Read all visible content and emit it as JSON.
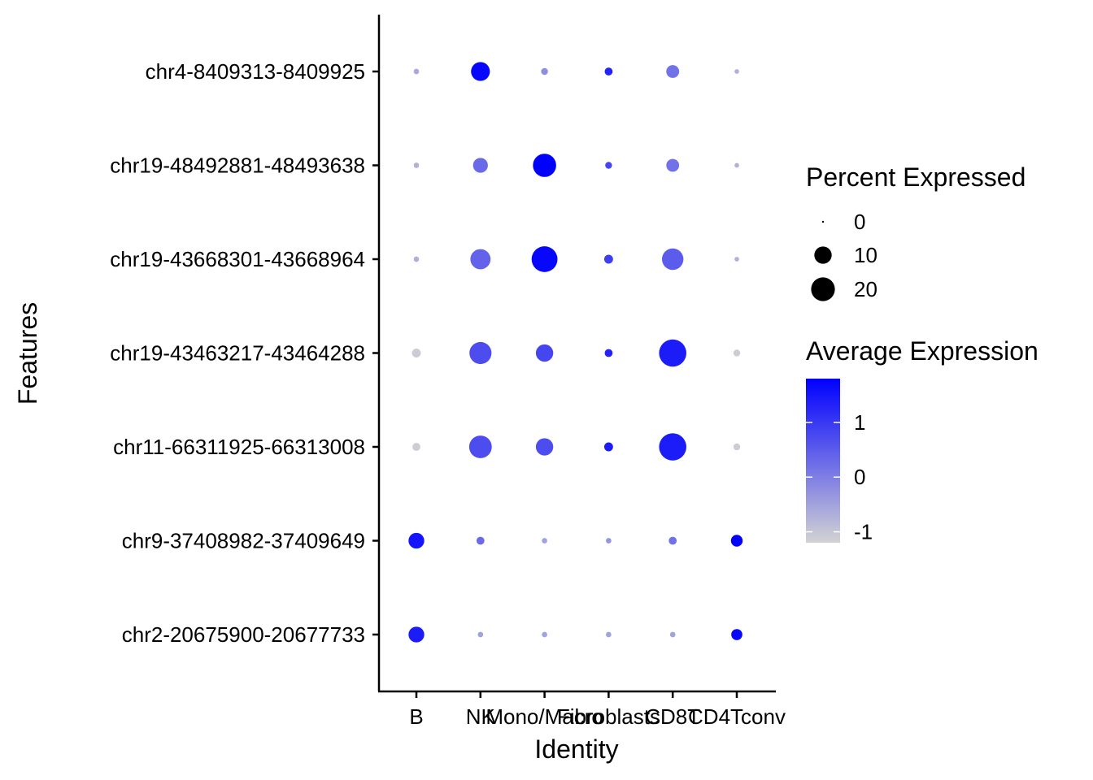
{
  "chart_data": {
    "type": "scatter",
    "subtype": "dot-plot",
    "xlabel": "Identity",
    "ylabel": "Features",
    "x_categories": [
      "B",
      "NK",
      "Mono/Macro",
      "Fibroblasts",
      "CD8T",
      "CD4Tconv"
    ],
    "y_categories": [
      "chr4-8409313-8409925",
      "chr19-48492881-48493638",
      "chr19-43668301-43668964",
      "chr19-43463217-43464288",
      "chr11-66311925-66313008",
      "chr9-37408982-37409649",
      "chr2-20675900-20677733"
    ],
    "pct_expressed": [
      [
        0.5,
        12,
        1,
        1.5,
        5,
        0.3
      ],
      [
        0.5,
        7,
        19,
        1,
        5,
        0.3
      ],
      [
        0.5,
        14,
        24,
        2,
        16,
        0.3
      ],
      [
        2,
        17,
        10,
        1.5,
        27,
        1
      ],
      [
        1.5,
        18,
        10,
        2,
        27,
        1
      ],
      [
        8,
        1.5,
        0.5,
        0.5,
        1.5,
        4
      ],
      [
        8,
        0.5,
        0.5,
        0.5,
        0.5,
        3.5
      ]
    ],
    "avg_expression": [
      [
        -0.6,
        1.7,
        -0.2,
        1.3,
        0.2,
        -0.7
      ],
      [
        -0.7,
        0.3,
        1.8,
        0.8,
        0.2,
        -0.7
      ],
      [
        -0.7,
        0.4,
        1.7,
        0.9,
        0.5,
        -0.7
      ],
      [
        -1.1,
        0.7,
        0.8,
        1.3,
        1.4,
        -1.1
      ],
      [
        -1.1,
        0.7,
        0.7,
        1.4,
        1.4,
        -1.1
      ],
      [
        1.5,
        0.3,
        -0.5,
        -0.3,
        0.2,
        1.8
      ],
      [
        1.4,
        -0.5,
        -0.5,
        -0.5,
        -0.5,
        1.7
      ]
    ],
    "size_legend": {
      "title": "Percent Expressed",
      "values": [
        0,
        10,
        20
      ],
      "labels": [
        "0",
        "10",
        "20"
      ]
    },
    "color_legend": {
      "title": "Average Expression",
      "low": -1.2,
      "high": 1.8,
      "breaks": [
        1,
        0,
        -1
      ],
      "labels": [
        "1",
        "0",
        "-1"
      ],
      "low_color": "#D3D3D3",
      "high_color": "#0000FF"
    },
    "grid": false,
    "legend_position": "right"
  }
}
